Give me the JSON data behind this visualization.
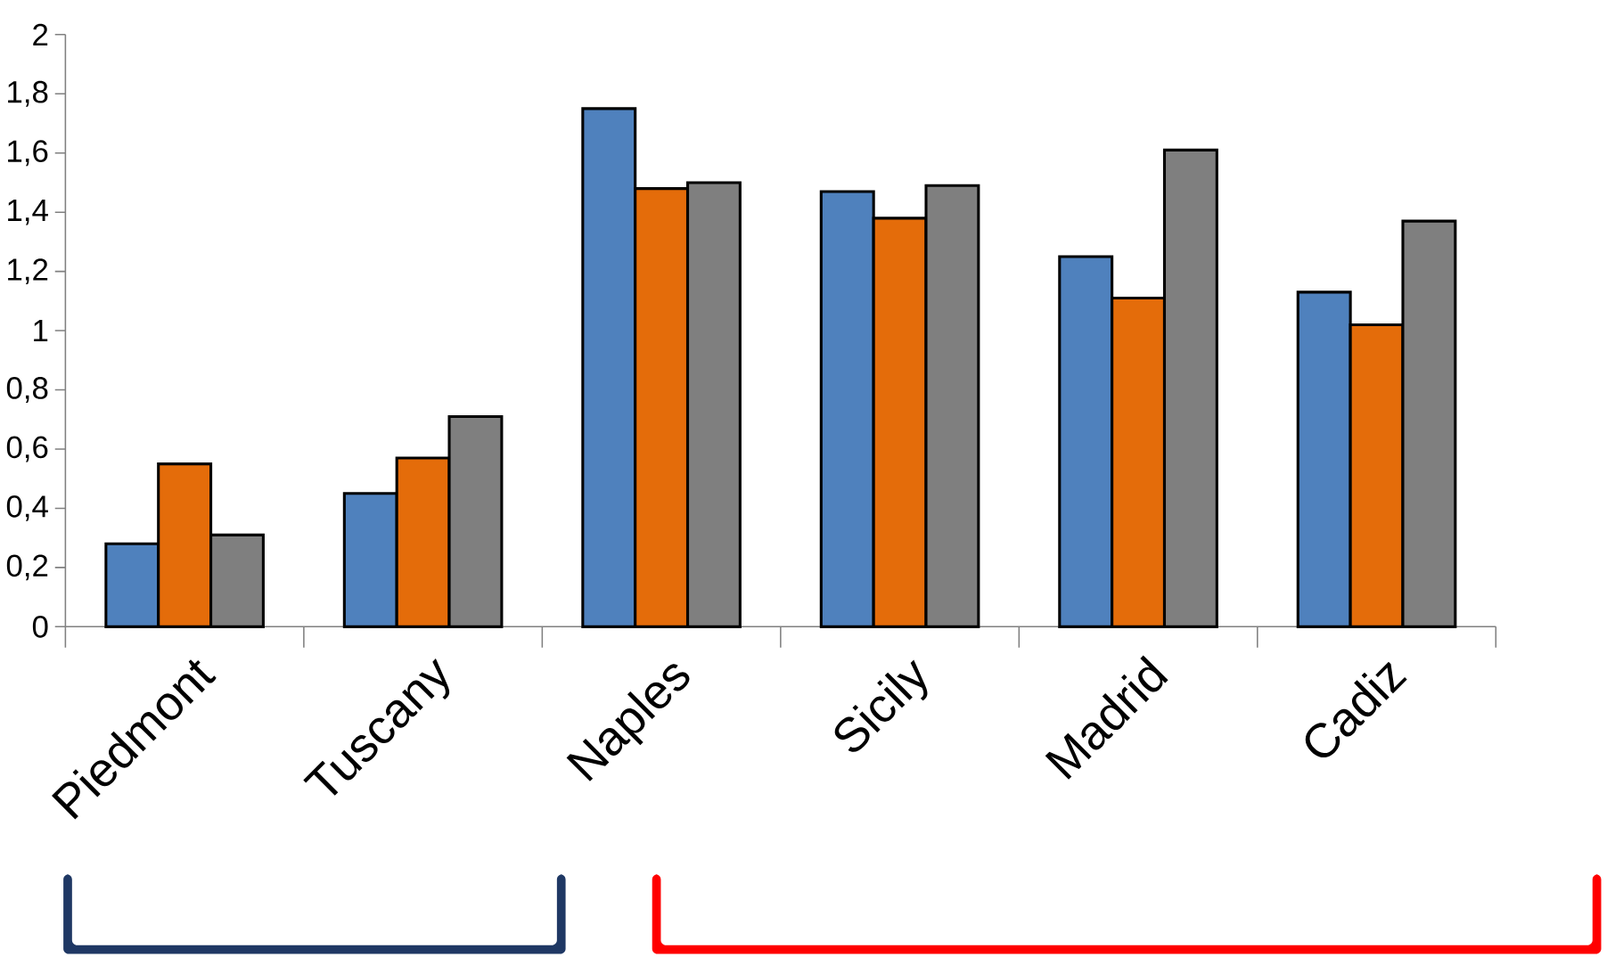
{
  "chart_data": {
    "type": "bar",
    "categories": [
      "Piedmont",
      "Tuscany",
      "Naples",
      "Sicily",
      "Madrid",
      "Cadiz"
    ],
    "series": [
      {
        "color": "#4f81bd",
        "values": [
          0.28,
          0.45,
          1.75,
          1.47,
          1.25,
          1.13
        ]
      },
      {
        "color": "#e46c0a",
        "values": [
          0.55,
          0.57,
          1.48,
          1.38,
          1.11,
          1.02
        ]
      },
      {
        "color": "#7f7f7f",
        "values": [
          0.31,
          0.71,
          1.5,
          1.49,
          1.61,
          1.37
        ]
      }
    ],
    "ylim": [
      0,
      2
    ],
    "yticks": [
      0,
      {
        "value": 0.2,
        "label": "0,2"
      },
      {
        "value": 0.4,
        "label": "0,4"
      },
      {
        "value": 0.6,
        "label": "0,6"
      },
      {
        "value": 0.8,
        "label": "0,8"
      },
      1,
      {
        "value": 1.2,
        "label": "1,2"
      },
      {
        "value": 1.4,
        "label": "1,4"
      },
      {
        "value": 1.6,
        "label": "1,6"
      },
      {
        "value": 1.8,
        "label": "1,8"
      },
      2
    ],
    "grid": false
  }
}
